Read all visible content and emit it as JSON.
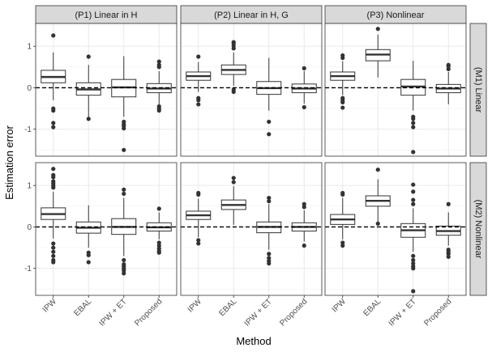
{
  "chart_data": {
    "type": "boxplot",
    "xlabel": "Method",
    "ylabel": "Estimation error",
    "methods": [
      "IPW",
      "EBAL",
      "IPW + ET",
      "Proposed"
    ],
    "columns": [
      "(P1) Linear in H",
      "(P2) Linear in H, G",
      "(P3) Nonlinear"
    ],
    "rows": [
      "(M1) Linear",
      "(M2) Nonlinear"
    ],
    "ylim": [
      -1.65,
      1.55
    ],
    "yticks": [
      -1,
      0,
      1
    ],
    "reference_line": 0,
    "grid": true,
    "panels": [
      {
        "row": 0,
        "col": 0,
        "boxes": [
          {
            "method": "IPW",
            "lower_whisker": -0.3,
            "q1": 0.12,
            "median": 0.26,
            "q3": 0.42,
            "upper_whisker": 0.85,
            "outliers": [
              1.26,
              -0.5,
              -0.55,
              -0.85,
              -0.95
            ]
          },
          {
            "method": "EBAL",
            "lower_whisker": -0.72,
            "q1": -0.18,
            "median": -0.04,
            "q3": 0.12,
            "upper_whisker": 0.55,
            "outliers": [
              0.75,
              -0.75
            ]
          },
          {
            "method": "IPW + ET",
            "lower_whisker": -0.7,
            "q1": -0.22,
            "median": 0.01,
            "q3": 0.2,
            "upper_whisker": 0.76,
            "outliers": [
              -0.82,
              -0.88,
              -0.92,
              -0.98,
              -1.5
            ]
          },
          {
            "method": "Proposed",
            "lower_whisker": -0.4,
            "q1": -0.12,
            "median": -0.02,
            "q3": 0.1,
            "upper_whisker": 0.4,
            "outliers": [
              0.5,
              0.55,
              0.63,
              -0.45,
              -0.5,
              -0.55
            ]
          }
        ]
      },
      {
        "row": 0,
        "col": 1,
        "boxes": [
          {
            "method": "IPW",
            "lower_whisker": -0.1,
            "q1": 0.18,
            "median": 0.28,
            "q3": 0.38,
            "upper_whisker": 0.62,
            "outliers": [
              0.75,
              -0.25,
              -0.3,
              -0.4
            ]
          },
          {
            "method": "EBAL",
            "lower_whisker": 0.05,
            "q1": 0.32,
            "median": 0.43,
            "q3": 0.55,
            "upper_whisker": 0.85,
            "outliers": [
              0.95,
              1.02,
              1.08,
              1.1,
              -0.05,
              -0.1
            ]
          },
          {
            "method": "IPW + ET",
            "lower_whisker": -0.55,
            "q1": -0.16,
            "median": -0.01,
            "q3": 0.15,
            "upper_whisker": 0.72,
            "outliers": [
              -0.82,
              -1.12
            ]
          },
          {
            "method": "Proposed",
            "lower_whisker": -0.38,
            "q1": -0.12,
            "median": -0.02,
            "q3": 0.09,
            "upper_whisker": 0.4,
            "outliers": [
              0.47,
              -0.47
            ]
          }
        ]
      },
      {
        "row": 0,
        "col": 2,
        "boxes": [
          {
            "method": "IPW",
            "lower_whisker": -0.18,
            "q1": 0.18,
            "median": 0.28,
            "q3": 0.38,
            "upper_whisker": 0.64,
            "outliers": [
              0.72,
              0.78,
              -0.25,
              -0.3,
              -0.35,
              -0.48
            ]
          },
          {
            "method": "EBAL",
            "lower_whisker": 0.25,
            "q1": 0.65,
            "median": 0.8,
            "q3": 0.92,
            "upper_whisker": 1.28,
            "outliers": [
              1.42
            ]
          },
          {
            "method": "IPW + ET",
            "lower_whisker": -0.55,
            "q1": -0.18,
            "median": 0.03,
            "q3": 0.2,
            "upper_whisker": 0.65,
            "outliers": [
              -0.7,
              -0.75,
              -0.85,
              -0.95,
              -1.55
            ]
          },
          {
            "method": "Proposed",
            "lower_whisker": -0.4,
            "q1": -0.12,
            "median": -0.02,
            "q3": 0.08,
            "upper_whisker": 0.38,
            "outliers": [
              0.45,
              0.52,
              0.55
            ]
          }
        ]
      },
      {
        "row": 1,
        "col": 0,
        "boxes": [
          {
            "method": "IPW",
            "lower_whisker": -0.28,
            "q1": 0.18,
            "median": 0.31,
            "q3": 0.46,
            "upper_whisker": 0.85,
            "outliers": [
              0.95,
              1.0,
              1.05,
              1.1,
              1.2,
              1.25,
              1.4,
              -0.4,
              -0.5,
              -0.6,
              -0.7,
              -0.8,
              -0.85
            ]
          },
          {
            "method": "EBAL",
            "lower_whisker": -0.5,
            "q1": -0.15,
            "median": -0.02,
            "q3": 0.12,
            "upper_whisker": 0.52,
            "outliers": [
              -0.62,
              -0.68,
              -0.85
            ]
          },
          {
            "method": "IPW + ET",
            "lower_whisker": -0.7,
            "q1": -0.18,
            "median": 0.0,
            "q3": 0.2,
            "upper_whisker": 0.7,
            "outliers": [
              0.8,
              0.9,
              -0.8,
              -0.9,
              -0.95,
              -1.0,
              -1.05,
              -1.12
            ]
          },
          {
            "method": "Proposed",
            "lower_whisker": -0.3,
            "q1": -0.1,
            "median": -0.01,
            "q3": 0.1,
            "upper_whisker": 0.35,
            "outliers": [
              0.44,
              -0.38,
              -0.45,
              -0.52,
              -0.58,
              -0.62
            ]
          }
        ]
      },
      {
        "row": 1,
        "col": 1,
        "boxes": [
          {
            "method": "IPW",
            "lower_whisker": -0.25,
            "q1": 0.18,
            "median": 0.28,
            "q3": 0.38,
            "upper_whisker": 0.68,
            "outliers": [
              0.78,
              0.82,
              -0.32,
              -0.4
            ]
          },
          {
            "method": "EBAL",
            "lower_whisker": 0.05,
            "q1": 0.42,
            "median": 0.53,
            "q3": 0.65,
            "upper_whisker": 0.98,
            "outliers": [
              1.08,
              1.18
            ]
          },
          {
            "method": "IPW + ET",
            "lower_whisker": -0.55,
            "q1": -0.14,
            "median": 0.0,
            "q3": 0.12,
            "upper_whisker": 0.55,
            "outliers": [
              0.62,
              0.7,
              -0.65,
              -0.75,
              -0.82,
              -0.88
            ]
          },
          {
            "method": "Proposed",
            "lower_whisker": -0.35,
            "q1": -0.1,
            "median": 0.0,
            "q3": 0.1,
            "upper_whisker": 0.4,
            "outliers": [
              0.48,
              0.55,
              -0.45
            ]
          }
        ]
      },
      {
        "row": 1,
        "col": 2,
        "boxes": [
          {
            "method": "IPW",
            "lower_whisker": -0.3,
            "q1": 0.06,
            "median": 0.18,
            "q3": 0.3,
            "upper_whisker": 0.7,
            "outliers": [
              0.78,
              0.82,
              -0.38,
              -0.45
            ]
          },
          {
            "method": "EBAL",
            "lower_whisker": 0.12,
            "q1": 0.5,
            "median": 0.63,
            "q3": 0.75,
            "upper_whisker": 1.15,
            "outliers": [
              1.38,
              0.08
            ]
          },
          {
            "method": "IPW + ET",
            "lower_whisker": -0.6,
            "q1": -0.25,
            "median": -0.08,
            "q3": 0.08,
            "upper_whisker": 0.45,
            "outliers": [
              0.55,
              0.65,
              0.85,
              1.02,
              -0.7,
              -0.8,
              -0.88,
              -0.95,
              -1.0,
              -1.55
            ]
          },
          {
            "method": "Proposed",
            "lower_whisker": -0.45,
            "q1": -0.2,
            "median": -0.1,
            "q3": 0.02,
            "upper_whisker": 0.35,
            "outliers": [
              0.55,
              -0.55,
              -0.6,
              -0.65,
              -0.72
            ]
          }
        ]
      }
    ]
  }
}
